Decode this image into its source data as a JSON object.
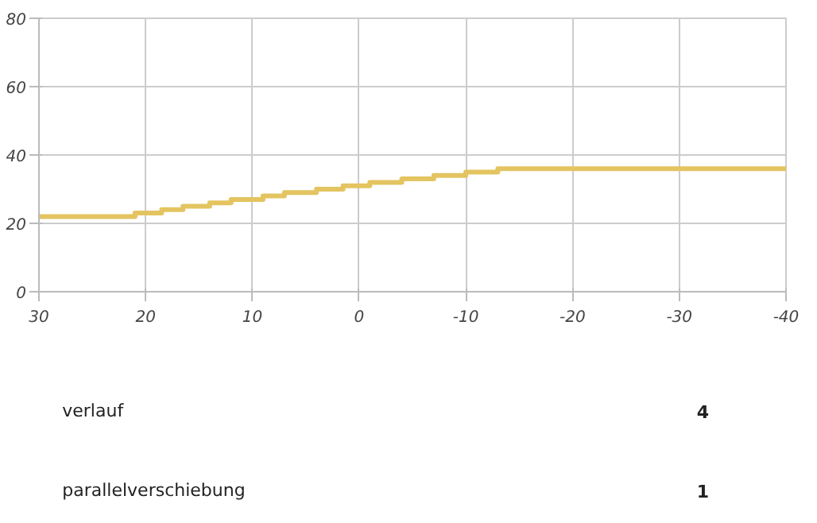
{
  "chart_data": {
    "type": "step",
    "x": [
      30,
      21,
      18.5,
      16.5,
      14,
      12,
      9,
      7,
      4,
      1.5,
      -1,
      -4,
      -7,
      -10,
      -13,
      -40
    ],
    "series": [
      {
        "color": "#e3c460",
        "values": [
          22,
          23,
          24,
          25,
          26,
          27,
          28,
          29,
          30,
          31,
          32,
          33,
          34,
          35,
          36,
          36
        ]
      }
    ],
    "xlim": [
      30,
      -40
    ],
    "xticks": [
      30,
      20,
      10,
      0,
      -10,
      -20,
      -30,
      -40
    ],
    "ylim": [
      0,
      80
    ],
    "yticks": [
      0,
      20,
      40,
      60,
      80
    ],
    "grid": true,
    "annotations": [
      "verlauf",
      "4",
      "parallelverschiebung",
      "1"
    ]
  }
}
